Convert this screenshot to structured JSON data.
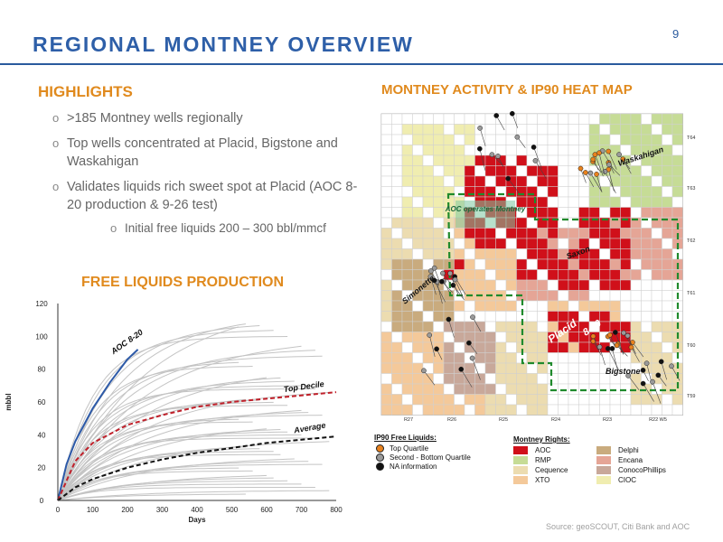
{
  "slide": {
    "page_number": "9",
    "title": "REGIONAL MONTNEY OVERVIEW",
    "source": "Source: geoSCOUT, Citi Bank and AOC"
  },
  "highlights": {
    "title": "HIGHLIGHTS",
    "bullets": [
      ">185 Montney wells regionally",
      "Top wells concentrated at Placid, Bigstone and Waskahigan",
      "Validates liquids rich sweet spot at Placid (AOC 8-20 production & 9-26 test)",
      "Initial free liquids 200 – 300 bbl/mmcf"
    ],
    "bullet_marker": "o"
  },
  "map": {
    "title": "MONTNEY ACTIVITY & IP90 HEAT MAP",
    "township_labels": [
      "T64",
      "T63",
      "T62",
      "T61",
      "T60",
      "T59"
    ],
    "range_labels": [
      "R27",
      "R26",
      "R25",
      "R24",
      "R23",
      "R22 W5"
    ],
    "area_labels": {
      "waskahigan": "Waskahigan",
      "aoc_operates": "AOC operates Montney",
      "saxon": "Saxon",
      "simonette": "Simonette",
      "placid": "Placid",
      "well_820": "8-20",
      "bigstone": "Bigstone"
    },
    "ip90_legend": {
      "title": "IP90 Free Liquids:",
      "items": [
        {
          "label": "Top Quartile",
          "color": "#e8821e"
        },
        {
          "label": "Second - Bottom Quartile",
          "color": "#9a9a9a"
        },
        {
          "label": "NA information",
          "color": "#111111"
        }
      ]
    },
    "rights_legend": {
      "title": "Montney Rights:",
      "items": [
        {
          "label": "AOC",
          "color": "#d0101a"
        },
        {
          "label": "Delphi",
          "color": "#c9ab7e"
        },
        {
          "label": "RMP",
          "color": "#c6dc96"
        },
        {
          "label": "Encana",
          "color": "#e5a596"
        },
        {
          "label": "Cequence",
          "color": "#ecdcb0"
        },
        {
          "label": "ConocoPhillips",
          "color": "#c8a89a"
        },
        {
          "label": "XTO",
          "color": "#f4c99a"
        },
        {
          "label": "CIOC",
          "color": "#f0edb0"
        }
      ]
    }
  },
  "production": {
    "title": "FREE LIQUIDS PRODUCTION"
  },
  "chart_data": {
    "type": "line",
    "xlabel": "Days",
    "ylabel": "mbbl",
    "xlim": [
      0,
      800
    ],
    "ylim": [
      0,
      120
    ],
    "x_ticks": [
      0,
      100,
      200,
      300,
      400,
      500,
      600,
      700,
      800
    ],
    "y_ticks": [
      0,
      20,
      40,
      60,
      80,
      100,
      120
    ],
    "grid": false,
    "series": [
      {
        "name": "AOC 8-20",
        "style": "solid",
        "color": "#2d5aa8",
        "x": [
          0,
          25,
          50,
          100,
          150,
          200,
          230
        ],
        "y": [
          0,
          22,
          36,
          56,
          72,
          86,
          92
        ]
      },
      {
        "name": "Top Decile",
        "style": "dashed",
        "color": "#c0202a",
        "x": [
          0,
          50,
          100,
          200,
          300,
          400,
          500,
          600,
          700,
          800
        ],
        "y": [
          0,
          24,
          35,
          46,
          52,
          57,
          60,
          62,
          64,
          66
        ]
      },
      {
        "name": "Average",
        "style": "dashed",
        "color": "#111111",
        "x": [
          0,
          50,
          100,
          200,
          300,
          400,
          500,
          600,
          700,
          800
        ],
        "y": [
          0,
          8,
          13,
          20,
          25,
          29,
          32,
          35,
          37,
          39
        ]
      }
    ],
    "background_well_finals": [
      116,
      112,
      108,
      104,
      100,
      96,
      92,
      88,
      85,
      82,
      79,
      76,
      73,
      70,
      68,
      66,
      64,
      62,
      60,
      58,
      56,
      54,
      52,
      50,
      48,
      46,
      44,
      42,
      40,
      38,
      36,
      34,
      32,
      30,
      28,
      26,
      24,
      22,
      20,
      18,
      16,
      14,
      12,
      10,
      8,
      6,
      4
    ],
    "background_color": "#c4c4c4"
  }
}
